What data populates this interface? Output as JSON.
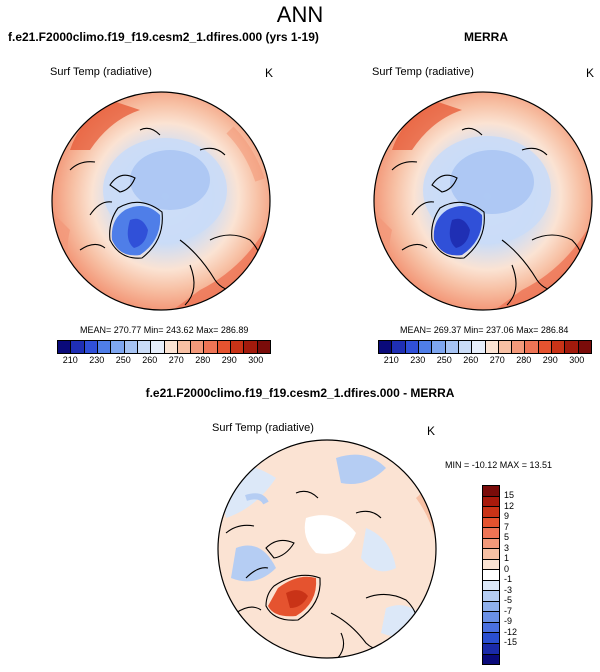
{
  "page_title": "ANN",
  "panels": {
    "model": {
      "title": "f.e21.F2000climo.f19_f19.cesm2_1.dfires.000 (yrs 1-19)",
      "variable": "Surf Temp (radiative)",
      "units": "K",
      "stats": "MEAN= 270.77  Min= 243.62  Max= 286.89"
    },
    "obs": {
      "title": "MERRA",
      "variable": "Surf Temp (radiative)",
      "units": "K",
      "stats": "MEAN= 269.37  Min= 237.06  Max= 286.84"
    },
    "diff": {
      "title": "f.e21.F2000climo.f19_f19.cesm2_1.dfires.000 - MERRA",
      "variable": "Surf Temp (radiative)",
      "units": "K",
      "stats": "MIN = -10.12 MAX =  13.51"
    }
  },
  "colorbar_main": {
    "colors": [
      "#0a0a7a",
      "#1f2fb4",
      "#3050d8",
      "#4f7ee8",
      "#7ea6f0",
      "#a6c3f3",
      "#cadcf7",
      "#e6eefb",
      "#fbe3d3",
      "#f7c0a4",
      "#f3997a",
      "#ee7455",
      "#e5532f",
      "#c93317",
      "#a21a0c",
      "#7a0c0a"
    ],
    "labels": [
      "210",
      "230",
      "250",
      "260",
      "270",
      "280",
      "290",
      "300"
    ]
  },
  "colorbar_diff": {
    "colors": [
      "#7a0c0a",
      "#a81a0c",
      "#c93317",
      "#e5532f",
      "#ee7455",
      "#f3997a",
      "#f7c0a4",
      "#fbe3d3",
      "#ffffff",
      "#dce8f8",
      "#b5cdf3",
      "#8fb0ec",
      "#6a90e6",
      "#4a70e0",
      "#2a4fd0",
      "#1a2aa8",
      "#0a0a7a"
    ],
    "labels": [
      "15",
      "12",
      "9",
      "7",
      "5",
      "3",
      "1",
      "0",
      "-1",
      "-3",
      "-5",
      "-7",
      "-9",
      "-12",
      "-15"
    ]
  }
}
